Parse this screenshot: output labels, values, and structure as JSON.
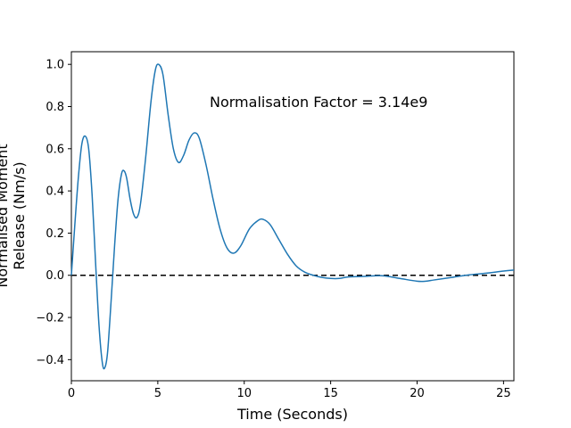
{
  "chart_data": {
    "type": "line",
    "xlabel": "Time (Seconds)",
    "ylabel_lines": [
      "Normalised Moment",
      "Release (Nm/s)"
    ],
    "xlim": [
      0,
      25.6
    ],
    "ylim": [
      -0.5,
      1.06
    ],
    "xticks": [
      0,
      5,
      10,
      15,
      20,
      25
    ],
    "yticks": [
      -0.4,
      -0.2,
      0.0,
      0.2,
      0.4,
      0.6,
      0.8,
      1.0
    ],
    "xtick_labels": [
      "0",
      "5",
      "10",
      "15",
      "20",
      "25"
    ],
    "ytick_labels": [
      "−0.4",
      "−0.2",
      "0.0",
      "0.2",
      "0.4",
      "0.6",
      "0.8",
      "1.0"
    ],
    "annotation": "Normalisation Factor = 3.14e9",
    "reference_line": {
      "y": 0.0,
      "style": "dashed",
      "color": "#000000"
    },
    "grid": false,
    "series": [
      {
        "color": "#1f77b4",
        "points": [
          [
            0,
            0.0
          ],
          [
            0.2,
            0.24
          ],
          [
            0.4,
            0.46
          ],
          [
            0.6,
            0.62
          ],
          [
            0.8,
            0.66
          ],
          [
            1.0,
            0.6
          ],
          [
            1.2,
            0.38
          ],
          [
            1.4,
            0.06
          ],
          [
            1.6,
            -0.24
          ],
          [
            1.8,
            -0.42
          ],
          [
            1.95,
            -0.435
          ],
          [
            2.1,
            -0.36
          ],
          [
            2.3,
            -0.12
          ],
          [
            2.5,
            0.14
          ],
          [
            2.7,
            0.36
          ],
          [
            2.9,
            0.48
          ],
          [
            3.05,
            0.495
          ],
          [
            3.2,
            0.46
          ],
          [
            3.4,
            0.36
          ],
          [
            3.6,
            0.29
          ],
          [
            3.8,
            0.275
          ],
          [
            4.0,
            0.34
          ],
          [
            4.3,
            0.56
          ],
          [
            4.6,
            0.82
          ],
          [
            4.85,
            0.97
          ],
          [
            5.05,
            1.0
          ],
          [
            5.3,
            0.95
          ],
          [
            5.6,
            0.76
          ],
          [
            5.9,
            0.6
          ],
          [
            6.2,
            0.535
          ],
          [
            6.5,
            0.57
          ],
          [
            6.8,
            0.64
          ],
          [
            7.1,
            0.675
          ],
          [
            7.4,
            0.65
          ],
          [
            7.8,
            0.52
          ],
          [
            8.2,
            0.36
          ],
          [
            8.6,
            0.22
          ],
          [
            9.0,
            0.13
          ],
          [
            9.4,
            0.105
          ],
          [
            9.8,
            0.14
          ],
          [
            10.3,
            0.22
          ],
          [
            10.8,
            0.26
          ],
          [
            11.1,
            0.265
          ],
          [
            11.5,
            0.24
          ],
          [
            12.0,
            0.17
          ],
          [
            12.5,
            0.1
          ],
          [
            13.0,
            0.045
          ],
          [
            13.5,
            0.015
          ],
          [
            14.0,
            0.0
          ],
          [
            14.5,
            -0.01
          ],
          [
            15.0,
            -0.015
          ],
          [
            15.5,
            -0.015
          ],
          [
            16.0,
            -0.008
          ],
          [
            17.0,
            -0.005
          ],
          [
            18.0,
            -0.002
          ],
          [
            19.0,
            -0.015
          ],
          [
            20.0,
            -0.028
          ],
          [
            20.5,
            -0.028
          ],
          [
            21.0,
            -0.022
          ],
          [
            22.0,
            -0.01
          ],
          [
            23.0,
            0.002
          ],
          [
            24.0,
            0.01
          ],
          [
            25.0,
            0.02
          ],
          [
            25.6,
            0.025
          ]
        ]
      }
    ]
  }
}
